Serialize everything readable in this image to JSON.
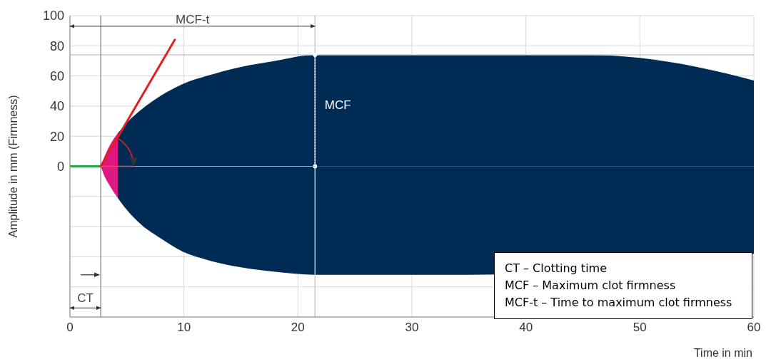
{
  "chart_data": {
    "type": "area",
    "xlabel": "Time in min",
    "ylabel": "Amplitude in mm (Firmness)",
    "xlim": [
      0,
      60
    ],
    "xticks": [
      0,
      10,
      20,
      30,
      40,
      50,
      60
    ],
    "ylim": [
      -100,
      100
    ],
    "yticks": [
      {
        "value": -100,
        "label": null
      },
      {
        "value": -80,
        "label": null
      },
      {
        "value": -60,
        "label": null
      },
      {
        "value": -40,
        "label": null
      },
      {
        "value": -20,
        "label": null
      },
      0,
      20,
      40,
      60,
      80,
      100
    ],
    "grid": true,
    "series": [
      {
        "color": "#002b55",
        "x": [
          4.2,
          5,
          6,
          8,
          10,
          12,
          15,
          18,
          21.5,
          25,
          30,
          35,
          40,
          45,
          50,
          55,
          60
        ],
        "values": [
          22,
          29,
          36,
          47,
          55,
          60,
          66,
          70,
          74,
          74,
          74,
          74,
          74,
          74,
          72,
          66,
          57
        ]
      },
      {
        "color": "#002b55",
        "x": [
          4.2,
          5,
          6,
          8,
          10,
          12,
          15,
          18,
          21.5,
          25,
          30,
          35,
          40,
          45,
          50,
          55,
          60
        ],
        "values": [
          -21,
          -29,
          -37,
          -48,
          -57,
          -62,
          -67,
          -70,
          -72,
          -72,
          -72,
          -72,
          null,
          null,
          null,
          null,
          -58
        ]
      },
      {
        "color": "#e0157f",
        "x": [
          2.7,
          3,
          3.5,
          4.2
        ],
        "values": [
          0,
          6,
          14,
          22
        ]
      },
      {
        "color": "#dc1a82",
        "x": [
          2.7,
          3,
          3.5,
          4.2
        ],
        "values": [
          0,
          -6,
          -13,
          -21
        ]
      },
      {
        "type": "line",
        "color": "#22a845",
        "x": [
          0,
          2.7
        ],
        "values": [
          0,
          0
        ]
      },
      {
        "type": "line",
        "color": "#e02020",
        "x": [
          2.7,
          9.2
        ],
        "values": [
          0,
          84
        ]
      }
    ],
    "ref_lines": [
      {
        "axis": "y",
        "value": 74,
        "color": "#c8c8c8"
      },
      {
        "axis": "x",
        "value": 2.7,
        "color": "#999999"
      },
      {
        "axis": "x",
        "value": 21.5,
        "color": "#c8c8c8"
      }
    ],
    "annotations": [
      "MCF-t",
      "MCF",
      "CT",
      "CT – Clotting time",
      "MCF – Maximum clot firmness",
      "MCF-t – Time to maximum clot firmness"
    ]
  }
}
